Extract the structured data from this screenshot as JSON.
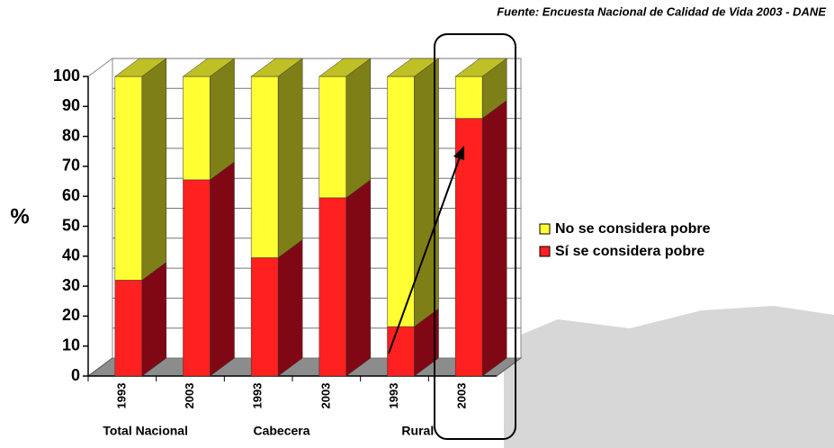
{
  "chart_data": {
    "type": "bar3d_stacked",
    "source": "Fuente: Encuesta Nacional de Calidad de Vida 2003 - DANE",
    "ylabel": "%",
    "categories": [
      "1993",
      "2003",
      "1993",
      "2003",
      "1993",
      "2003"
    ],
    "groups": [
      "Total Nacional",
      "Cabecera",
      "Rural"
    ],
    "series": [
      {
        "name": "Sí se considera pobre",
        "color": "#ff2020",
        "side_color": "#800814",
        "values": [
          32,
          65.5,
          39.5,
          59.5,
          16.5,
          86
        ]
      },
      {
        "name": "No se considera pobre",
        "color": "#ffff33",
        "side_color": "#7f7f18",
        "values": [
          68,
          34.5,
          60.5,
          40.5,
          83.5,
          14
        ]
      }
    ],
    "legend_order": [
      1,
      0
    ],
    "legend": "right",
    "ylim": [
      0,
      100
    ],
    "yticks": [
      0,
      10,
      20,
      30,
      40,
      50,
      60,
      70,
      80,
      90,
      100
    ],
    "grid": true
  }
}
